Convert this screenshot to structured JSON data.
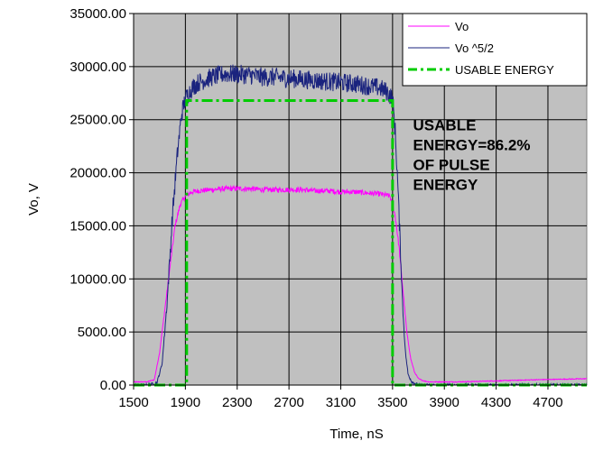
{
  "chart_data": {
    "type": "line",
    "xlabel": "Time, nS",
    "ylabel": "Vo, V",
    "xlim": [
      1500,
      5000
    ],
    "ylim": [
      0,
      35000
    ],
    "x_ticks": [
      1500,
      1900,
      2300,
      2700,
      3100,
      3500,
      3900,
      4300,
      4700
    ],
    "x_tick_labels": [
      "1500",
      "1900",
      "2300",
      "2700",
      "3100",
      "3500",
      "3900",
      "4300",
      "4700"
    ],
    "y_ticks": [
      0,
      5000,
      10000,
      15000,
      20000,
      25000,
      30000,
      35000
    ],
    "y_tick_labels": [
      "0.00",
      "5000.00",
      "10000.00",
      "15000.00",
      "20000.00",
      "25000.00",
      "30000.00",
      "35000.00"
    ],
    "grid": true,
    "plot_background": "#c0c0c0",
    "legend_position": "top-right",
    "series": [
      {
        "name": "Vo",
        "color": "#ff00ff",
        "style": "solid",
        "x": [
          1500,
          1600,
          1660,
          1700,
          1740,
          1780,
          1820,
          1860,
          1900,
          1950,
          2000,
          2100,
          2200,
          2300,
          2400,
          2500,
          2600,
          2700,
          2800,
          2900,
          3000,
          3100,
          3200,
          3300,
          3400,
          3480,
          3520,
          3550,
          3580,
          3610,
          3640,
          3670,
          3700,
          3740,
          3780,
          3850,
          4000,
          4300,
          4600,
          5000
        ],
        "y": [
          300,
          300,
          500,
          3000,
          7000,
          11000,
          15000,
          17000,
          17800,
          18200,
          18300,
          18400,
          18500,
          18500,
          18500,
          18400,
          18400,
          18400,
          18400,
          18300,
          18300,
          18200,
          18200,
          18100,
          18000,
          17800,
          16000,
          13000,
          9000,
          5000,
          2500,
          1200,
          600,
          400,
          300,
          300,
          300,
          400,
          500,
          600
        ],
        "noise": 250
      },
      {
        "name": "Vo ^5/2",
        "color": "#1a237e",
        "style": "solid",
        "x": [
          1500,
          1600,
          1680,
          1720,
          1760,
          1800,
          1840,
          1870,
          1900,
          1950,
          2000,
          2100,
          2200,
          2300,
          2400,
          2500,
          2600,
          2700,
          2800,
          2900,
          3000,
          3100,
          3200,
          3300,
          3400,
          3460,
          3500,
          3520,
          3540,
          3560,
          3580,
          3600,
          3620,
          3650,
          3700,
          5000
        ],
        "y": [
          0,
          0,
          200,
          2000,
          8000,
          16000,
          22000,
          25500,
          27000,
          28000,
          28500,
          29000,
          29300,
          29300,
          29200,
          29000,
          29000,
          28900,
          28800,
          28700,
          28600,
          28500,
          28400,
          28200,
          28000,
          27600,
          27000,
          24000,
          19000,
          13000,
          7000,
          3000,
          1000,
          300,
          0,
          0
        ],
        "noise": 900
      },
      {
        "name": "USABLE ENERGY",
        "color": "#00cc00",
        "style": "dashdot",
        "x": [
          1500,
          1910,
          1910,
          3500,
          3500,
          5000
        ],
        "y": [
          0,
          0,
          26800,
          26800,
          0,
          0
        ]
      }
    ],
    "annotations": [
      {
        "lines": [
          "USABLE",
          "ENERGY=86.2%",
          "OF PULSE",
          "ENERGY"
        ],
        "x": 3700,
        "y": 24000
      }
    ]
  }
}
